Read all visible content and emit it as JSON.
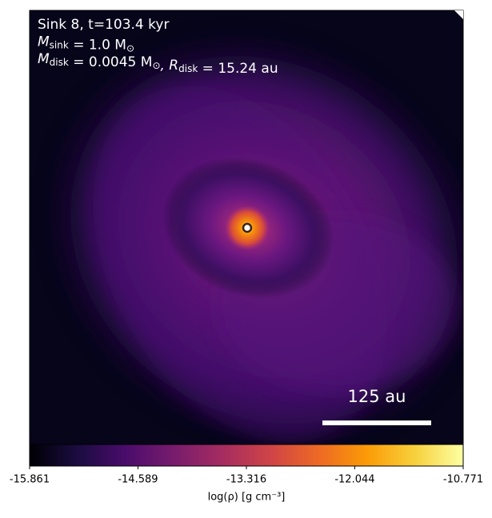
{
  "chart_data": {
    "type": "image",
    "annotations": [
      [
        {
          "text": "Sink 8, t=103.4 kyr"
        }
      ],
      [
        {
          "text": "M"
        },
        {
          "sub": "sink"
        },
        {
          "text": " = 1.0 M"
        },
        {
          "sub": "⊙"
        }
      ],
      [
        {
          "text": "M"
        },
        {
          "sub": "disk"
        },
        {
          "text": " = 0.0045 M"
        },
        {
          "sub": "⊙"
        },
        {
          "text": ", R"
        },
        {
          "sub": "disk"
        },
        {
          "text": " = 15.24 au"
        }
      ]
    ],
    "scale_bar_label": "125 au",
    "colorbar": {
      "label": "log(ρ) [g cm⁻³]",
      "colormap": "inferno",
      "clim": [
        -15.861,
        -10.771
      ],
      "ticks": [
        -15.861,
        -14.589,
        -13.316,
        -12.044,
        -10.771
      ]
    }
  }
}
